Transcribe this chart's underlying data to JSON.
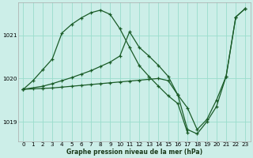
{
  "title": "Graphe pression niveau de la mer (hPa)",
  "bg_color": "#cceee8",
  "grid_color": "#99ddcc",
  "line_color": "#1a5c28",
  "xlim": [
    -0.5,
    23.5
  ],
  "ylim": [
    1018.55,
    1021.75
  ],
  "yticks": [
    1019,
    1020,
    1021
  ],
  "xticks": [
    0,
    1,
    2,
    3,
    4,
    5,
    6,
    7,
    8,
    9,
    10,
    11,
    12,
    13,
    14,
    15,
    16,
    17,
    18,
    19,
    20,
    21,
    22,
    23
  ],
  "series": [
    {
      "x": [
        0,
        1,
        2,
        3,
        4,
        5,
        6,
        7,
        8,
        9,
        10,
        11,
        12,
        13,
        14,
        15,
        16,
        17
      ],
      "y": [
        1019.75,
        1019.95,
        1020.2,
        1020.45,
        1021.05,
        1021.25,
        1021.4,
        1021.52,
        1021.58,
        1021.48,
        1021.15,
        1020.72,
        1020.3,
        1020.05,
        1019.82,
        1019.6,
        1019.42,
        1018.75
      ]
    },
    {
      "x": [
        0,
        2,
        3,
        4,
        5,
        6,
        7,
        8,
        9,
        10,
        11,
        12,
        13,
        14,
        15,
        16,
        17,
        18,
        19,
        20,
        21,
        22,
        23
      ],
      "y": [
        1019.75,
        1019.82,
        1019.88,
        1019.95,
        1020.02,
        1020.1,
        1020.18,
        1020.28,
        1020.38,
        1020.52,
        1021.08,
        1020.72,
        1020.52,
        1020.3,
        1020.05,
        1019.62,
        1019.32,
        1018.82,
        1019.05,
        1019.5,
        1020.05,
        1021.42,
        1021.62
      ]
    },
    {
      "x": [
        0,
        1,
        2,
        3,
        4,
        5,
        6,
        7,
        8,
        9,
        10,
        11,
        12,
        13,
        14,
        15,
        16,
        17,
        18,
        19,
        20,
        21,
        22,
        23
      ],
      "y": [
        1019.75,
        1019.76,
        1019.77,
        1019.78,
        1019.8,
        1019.82,
        1019.84,
        1019.86,
        1019.88,
        1019.9,
        1019.92,
        1019.94,
        1019.96,
        1019.98,
        1020.0,
        1019.95,
        1019.62,
        1018.82,
        1018.72,
        1019.0,
        1019.35,
        1020.05,
        1021.42,
        1021.62
      ]
    }
  ]
}
